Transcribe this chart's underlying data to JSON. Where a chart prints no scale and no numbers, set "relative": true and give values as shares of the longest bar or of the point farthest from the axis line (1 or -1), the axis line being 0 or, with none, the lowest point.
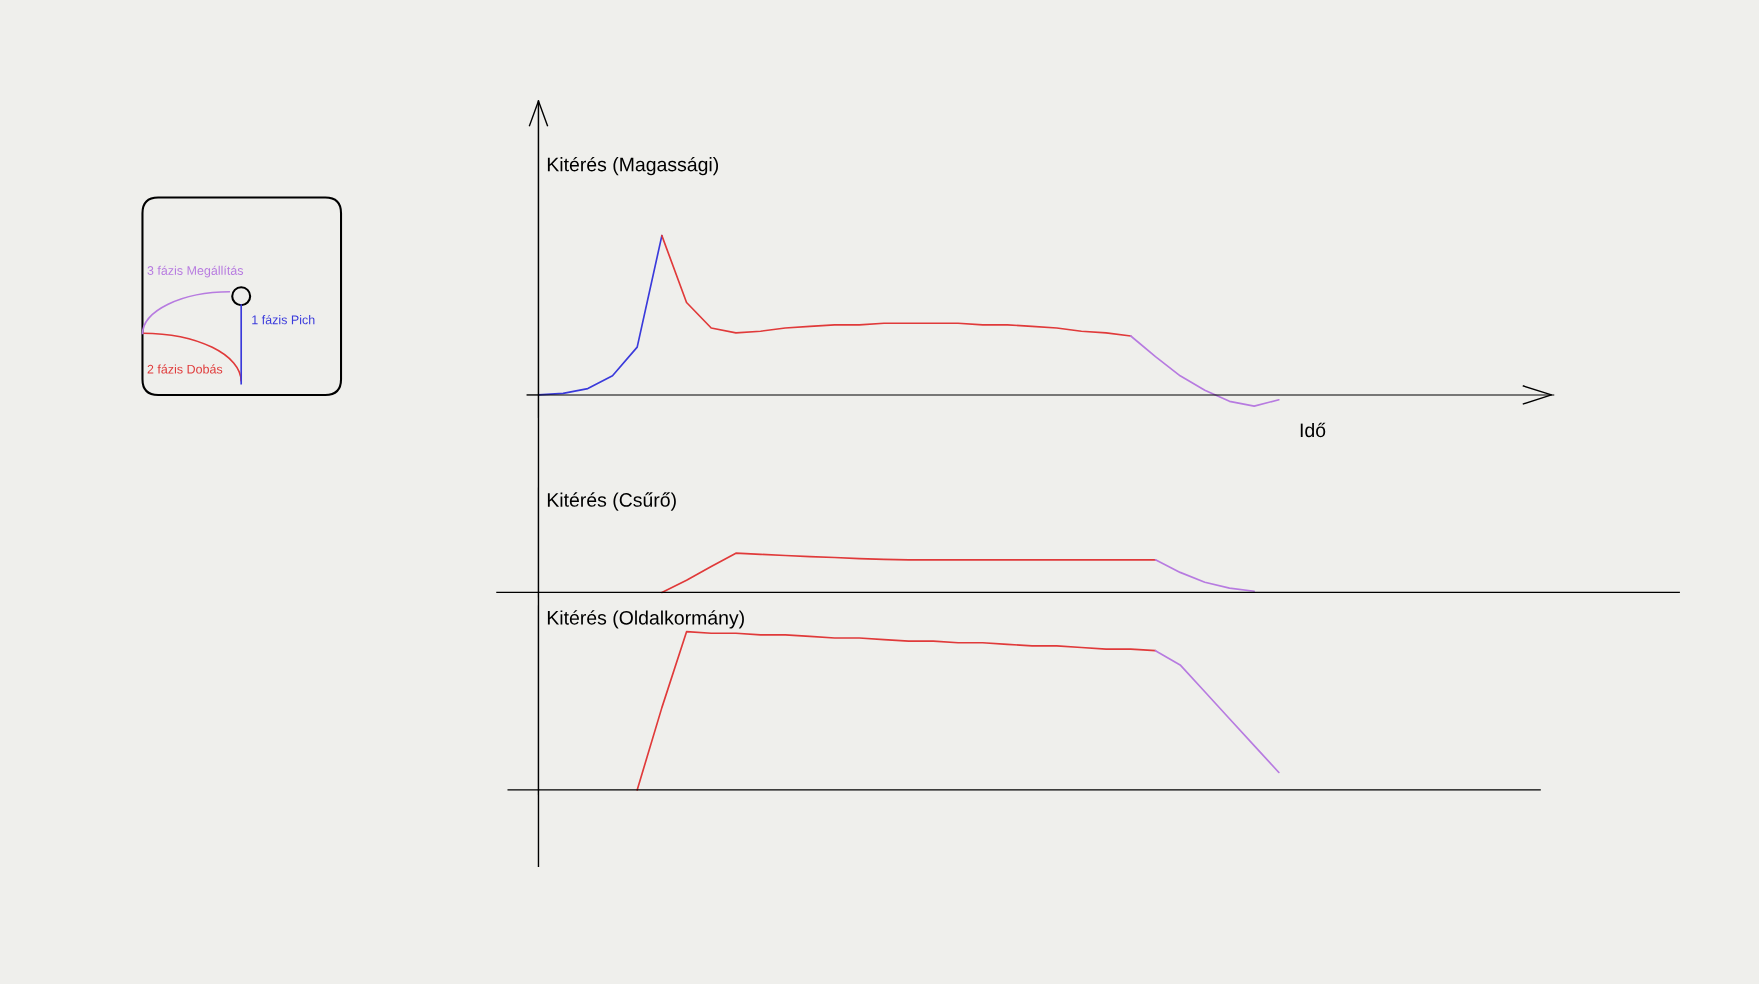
{
  "chart_data": [
    {
      "type": "line",
      "relative": true,
      "ylabel": "Kitérés (Magassági)",
      "xlabel": "Idő",
      "categories": [
        null,
        null,
        null,
        null,
        null,
        null,
        null,
        null,
        null,
        null,
        null,
        null,
        null,
        null,
        null,
        null,
        null,
        null,
        null,
        null,
        null,
        null,
        null,
        null,
        null,
        null,
        null,
        null,
        null,
        null,
        null,
        null
      ],
      "series": [
        {
          "name": "1 fázis Pich",
          "color": "#3a3adb",
          "values": [
            0,
            0.01,
            0.04,
            0.12,
            0.3,
            1,
            null,
            null,
            null,
            null,
            null,
            null,
            null,
            null,
            null,
            null,
            null,
            null,
            null,
            null,
            null,
            null,
            null,
            null,
            null,
            null,
            null,
            null,
            null,
            null,
            null,
            null
          ]
        },
        {
          "name": "2 fázis Dobás",
          "color": "#e03a3a",
          "values": [
            null,
            null,
            null,
            null,
            null,
            1,
            0.58,
            0.42,
            0.39,
            0.4,
            0.42,
            0.43,
            0.44,
            0.44,
            0.45,
            0.45,
            0.45,
            0.45,
            0.44,
            0.44,
            0.43,
            0.42,
            0.4,
            0.39,
            0.37,
            null,
            null,
            null,
            null,
            null,
            null,
            null
          ]
        },
        {
          "name": "3 fázis Megállítás",
          "color": "#b77be0",
          "values": [
            null,
            null,
            null,
            null,
            null,
            null,
            null,
            null,
            null,
            null,
            null,
            null,
            null,
            null,
            null,
            null,
            null,
            null,
            null,
            null,
            null,
            null,
            null,
            null,
            0.37,
            0.24,
            0.12,
            0.03,
            -0.04,
            -0.07,
            -0.03,
            null
          ]
        }
      ]
    },
    {
      "type": "line",
      "relative": true,
      "ylabel": "Kitérés (Csűrő)",
      "categories": [
        null,
        null,
        null,
        null,
        null,
        null,
        null,
        null,
        null,
        null,
        null,
        null,
        null,
        null,
        null,
        null,
        null,
        null,
        null,
        null,
        null,
        null,
        null,
        null,
        null,
        null,
        null,
        null,
        null,
        null,
        null,
        null
      ],
      "series": [
        {
          "color": "#e03a3a",
          "values": [
            null,
            null,
            null,
            null,
            null,
            0,
            0.31,
            0.66,
            1,
            0.97,
            0.94,
            0.91,
            0.89,
            0.86,
            0.84,
            0.83,
            0.83,
            0.83,
            0.83,
            0.83,
            0.83,
            0.83,
            0.83,
            0.83,
            0.83,
            0.83,
            null,
            null,
            null,
            null,
            null,
            null
          ]
        },
        {
          "color": "#b77be0",
          "values": [
            null,
            null,
            null,
            null,
            null,
            null,
            null,
            null,
            null,
            null,
            null,
            null,
            null,
            null,
            null,
            null,
            null,
            null,
            null,
            null,
            null,
            null,
            null,
            null,
            null,
            0.83,
            0.51,
            0.26,
            0.11,
            0.03,
            null,
            null
          ]
        }
      ]
    },
    {
      "type": "line",
      "relative": true,
      "ylabel": "Kitérés (Oldalkormány)",
      "categories": [
        null,
        null,
        null,
        null,
        null,
        null,
        null,
        null,
        null,
        null,
        null,
        null,
        null,
        null,
        null,
        null,
        null,
        null,
        null,
        null,
        null,
        null,
        null,
        null,
        null,
        null,
        null,
        null,
        null,
        null,
        null,
        null
      ],
      "series": [
        {
          "color": "#e03a3a",
          "values": [
            null,
            null,
            null,
            null,
            0,
            0.52,
            1,
            0.99,
            0.99,
            0.98,
            0.98,
            0.97,
            0.96,
            0.96,
            0.95,
            0.94,
            0.94,
            0.93,
            0.93,
            0.92,
            0.91,
            0.91,
            0.9,
            0.89,
            0.89,
            0.88,
            null,
            null,
            null,
            null,
            null,
            null
          ]
        },
        {
          "color": "#b77be0",
          "values": [
            null,
            null,
            null,
            null,
            null,
            null,
            null,
            null,
            null,
            null,
            null,
            null,
            null,
            null,
            null,
            null,
            null,
            null,
            null,
            null,
            null,
            null,
            null,
            null,
            null,
            0.88,
            0.79,
            0.62,
            0.45,
            0.28,
            0.11,
            null
          ]
        }
      ]
    }
  ]
}
